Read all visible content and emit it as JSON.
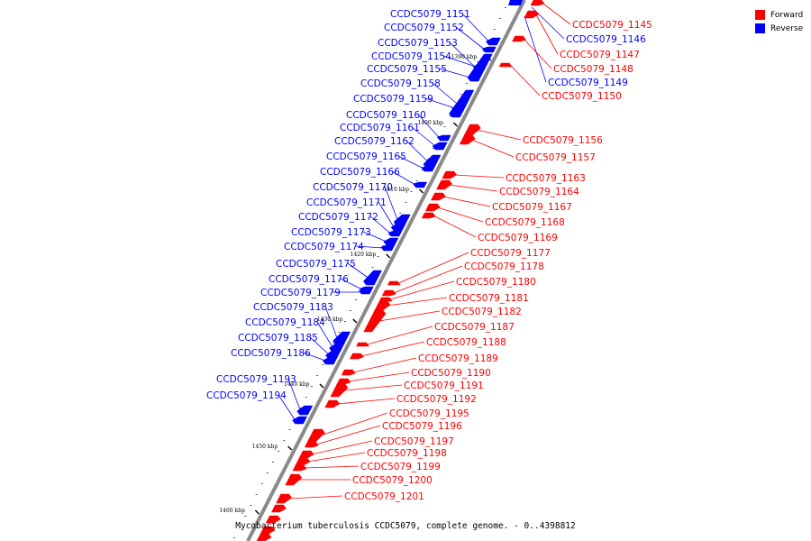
{
  "caption": "Mycobacterium tuberculosis CCDC5079, complete genome. - 0..4398812",
  "legend": [
    {
      "label": "Forward",
      "color": "#ff0000"
    },
    {
      "label": "Reverse",
      "color": "#0000ff"
    }
  ],
  "colors": {
    "forward": "#ff0000",
    "reverse": "#0000ff",
    "backbone": "#808080"
  },
  "ticks": [
    "1390 kbp",
    "1400 kbp",
    "1410 kbp",
    "1420 kbp",
    "1430 kbp",
    "1440 kbp",
    "1450 kbp",
    "1460 kbp"
  ],
  "reverse_genes": [
    "CCDC5079_1151",
    "CCDC5079_1152",
    "CCDC5079_1153",
    "CCDC5079_1154",
    "CCDC5079_1155",
    "CCDC5079_1158",
    "CCDC5079_1159",
    "CCDC5079_1160",
    "CCDC5079_1161",
    "CCDC5079_1162",
    "CCDC5079_1165",
    "CCDC5079_1166",
    "CCDC5079_1170",
    "CCDC5079_1171",
    "CCDC5079_1172",
    "CCDC5079_1173",
    "CCDC5079_1174",
    "CCDC5079_1175",
    "CCDC5079_1176",
    "CCDC5079_1179",
    "CCDC5079_1183",
    "CCDC5079_1184",
    "CCDC5079_1185",
    "CCDC5079_1186",
    "CCDC5079_1193",
    "CCDC5079_1194"
  ],
  "forward_genes": [
    "CCDC5079_1145",
    "CCDC5079_1147",
    "CCDC5079_1148",
    "CCDC5079_1150",
    "CCDC5079_1156",
    "CCDC5079_1157",
    "CCDC5079_1163",
    "CCDC5079_1164",
    "CCDC5079_1167",
    "CCDC5079_1168",
    "CCDC5079_1169",
    "CCDC5079_1177",
    "CCDC5079_1178",
    "CCDC5079_1180",
    "CCDC5079_1181",
    "CCDC5079_1182",
    "CCDC5079_1187",
    "CCDC5079_1188",
    "CCDC5079_1189",
    "CCDC5079_1190",
    "CCDC5079_1191",
    "CCDC5079_1192",
    "CCDC5079_1195",
    "CCDC5079_1196",
    "CCDC5079_1197",
    "CCDC5079_1198",
    "CCDC5079_1199",
    "CCDC5079_1200",
    "CCDC5079_1201"
  ],
  "extra_reverse_right": [
    "CCDC5079_1146",
    "CCDC5079_1149"
  ]
}
